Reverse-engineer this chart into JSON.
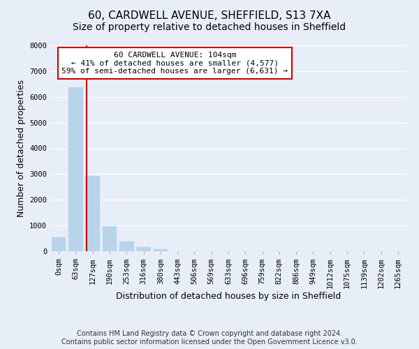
{
  "title_line1": "60, CARDWELL AVENUE, SHEFFIELD, S13 7XA",
  "title_line2": "Size of property relative to detached houses in Sheffield",
  "xlabel": "Distribution of detached houses by size in Sheffield",
  "ylabel": "Number of detached properties",
  "bar_labels": [
    "0sqm",
    "63sqm",
    "127sqm",
    "190sqm",
    "253sqm",
    "316sqm",
    "380sqm",
    "443sqm",
    "506sqm",
    "569sqm",
    "633sqm",
    "696sqm",
    "759sqm",
    "822sqm",
    "886sqm",
    "949sqm",
    "1012sqm",
    "1075sqm",
    "1139sqm",
    "1202sqm",
    "1265sqm"
  ],
  "bar_heights": [
    550,
    6380,
    2930,
    975,
    370,
    175,
    90,
    0,
    0,
    0,
    0,
    0,
    0,
    0,
    0,
    0,
    0,
    0,
    0,
    0,
    0
  ],
  "bar_color": "#b8d4ea",
  "bar_edge_color": "#b8d4ea",
  "vline_x": 1.65,
  "vline_color": "#cc0000",
  "ylim": [
    0,
    8000
  ],
  "yticks": [
    0,
    1000,
    2000,
    3000,
    4000,
    5000,
    6000,
    7000,
    8000
  ],
  "annotation_title": "60 CARDWELL AVENUE: 104sqm",
  "annotation_line1": "← 41% of detached houses are smaller (4,577)",
  "annotation_line2": "59% of semi-detached houses are larger (6,631) →",
  "footer_line1": "Contains HM Land Registry data © Crown copyright and database right 2024.",
  "footer_line2": "Contains public sector information licensed under the Open Government Licence v3.0.",
  "background_color": "#e8eef8",
  "grid_color": "#ffffff",
  "title_fontsize": 11,
  "subtitle_fontsize": 10,
  "axis_label_fontsize": 9,
  "tick_fontsize": 7.5,
  "annotation_fontsize": 8,
  "footer_fontsize": 7
}
